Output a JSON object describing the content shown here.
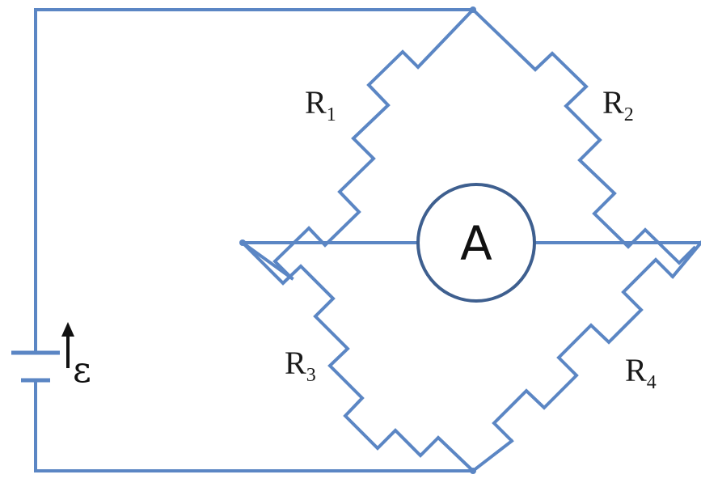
{
  "diagram": {
    "resistors": [
      {
        "id": "r1",
        "symbol": "R",
        "subscript": "1"
      },
      {
        "id": "r2",
        "symbol": "R",
        "subscript": "2"
      },
      {
        "id": "r3",
        "symbol": "R",
        "subscript": "3"
      },
      {
        "id": "r4",
        "symbol": "R",
        "subscript": "4"
      }
    ],
    "ammeter": {
      "letter": "A"
    },
    "source": {
      "symbol": "ε"
    },
    "colors": {
      "wire": "#5b86c4",
      "meter_ring": "#3e5f8f",
      "text": "#1a1a1a"
    }
  }
}
